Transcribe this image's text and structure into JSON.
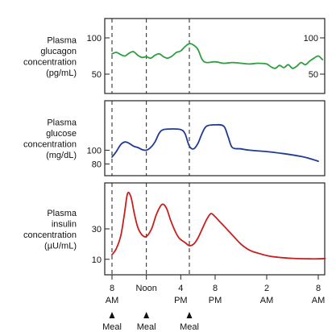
{
  "chart_data": {
    "type": "line",
    "meal_times_h": [
      8,
      12,
      17
    ],
    "meal_label": "Meal",
    "x_ticks": [
      {
        "x": 8,
        "line1": "8",
        "line2": "AM"
      },
      {
        "x": 12,
        "line1": "Noon",
        "line2": ""
      },
      {
        "x": 16,
        "line1": "4",
        "line2": "PM"
      },
      {
        "x": 20,
        "line1": "8",
        "line2": "PM"
      },
      {
        "x": 26,
        "line1": "2",
        "line2": "AM"
      },
      {
        "x": 32,
        "line1": "8",
        "line2": "AM"
      }
    ],
    "panels": [
      {
        "id": "glucagon",
        "label_lines": [
          "Plasma",
          "glucagon",
          "concentration",
          "(pg/mL)"
        ],
        "color": "#2e9e3e",
        "ylim": [
          30,
          120
        ],
        "yticks": [
          50,
          100
        ],
        "ticks_right": true,
        "x": [
          8,
          8.5,
          9,
          9.5,
          10,
          10.5,
          11,
          11.5,
          12,
          12.5,
          13,
          13.5,
          14,
          14.5,
          15,
          15.5,
          16,
          16.5,
          17,
          17.5,
          18,
          18.5,
          19,
          20,
          21,
          22,
          23,
          24,
          25,
          26,
          26.5,
          27,
          27.5,
          28,
          28.5,
          29,
          29.5,
          30,
          30.5,
          31,
          31.5,
          32,
          32.5
        ],
        "y": [
          78,
          80,
          77,
          75,
          79,
          81,
          76,
          73,
          74,
          72,
          76,
          78,
          74,
          72,
          75,
          80,
          82,
          88,
          92,
          90,
          84,
          70,
          66,
          67,
          65,
          66,
          65,
          64,
          65,
          64,
          60,
          58,
          62,
          59,
          63,
          58,
          61,
          66,
          63,
          68,
          72,
          75,
          70
        ]
      },
      {
        "id": "glucose",
        "label_lines": [
          "Plasma",
          "glucose",
          "concentration",
          "(mg/dL)"
        ],
        "color": "#1f3a93",
        "ylim": [
          70,
          165
        ],
        "yticks": [
          80,
          100
        ],
        "ticks_right": false,
        "x": [
          8,
          8.5,
          9,
          9.5,
          10,
          10.5,
          11,
          11.5,
          12,
          12.5,
          13,
          13.5,
          14,
          15,
          16,
          16.5,
          17,
          17.5,
          18,
          18.5,
          19,
          20,
          21,
          21.5,
          22,
          23,
          24,
          26,
          28,
          30,
          31,
          32
        ],
        "y": [
          90,
          98,
          108,
          112,
          110,
          106,
          104,
          101,
          100,
          104,
          112,
          125,
          130,
          131,
          130,
          124,
          106,
          102,
          110,
          125,
          135,
          137,
          135,
          120,
          104,
          102,
          100,
          98,
          95,
          91,
          88,
          84
        ]
      },
      {
        "id": "insulin",
        "label_lines": [
          "Plasma",
          "insulin",
          "concentration",
          "(µU/mL)"
        ],
        "color": "#c81e1e",
        "ylim": [
          3,
          57
        ],
        "yticks": [
          10,
          30
        ],
        "ticks_right": false,
        "x": [
          8,
          8.5,
          9,
          9.4,
          9.8,
          10.2,
          10.6,
          11,
          11.5,
          12,
          12.6,
          13.2,
          13.8,
          14.3,
          14.8,
          15.3,
          15.8,
          16.5,
          17,
          17.5,
          18,
          18.5,
          19,
          19.5,
          20,
          20.5,
          21,
          22,
          23,
          24,
          25,
          26,
          27,
          28,
          29,
          30,
          31,
          32,
          32.8
        ],
        "y": [
          13,
          17,
          25,
          38,
          53,
          51,
          40,
          31,
          26,
          25,
          30,
          40,
          46,
          44,
          36,
          29,
          24,
          21,
          19,
          20,
          24,
          30,
          36,
          40,
          38,
          35,
          32,
          26,
          20,
          16,
          14,
          12.5,
          11.5,
          11,
          10.6,
          10.4,
          10.3,
          10.3,
          10.5
        ]
      }
    ]
  }
}
